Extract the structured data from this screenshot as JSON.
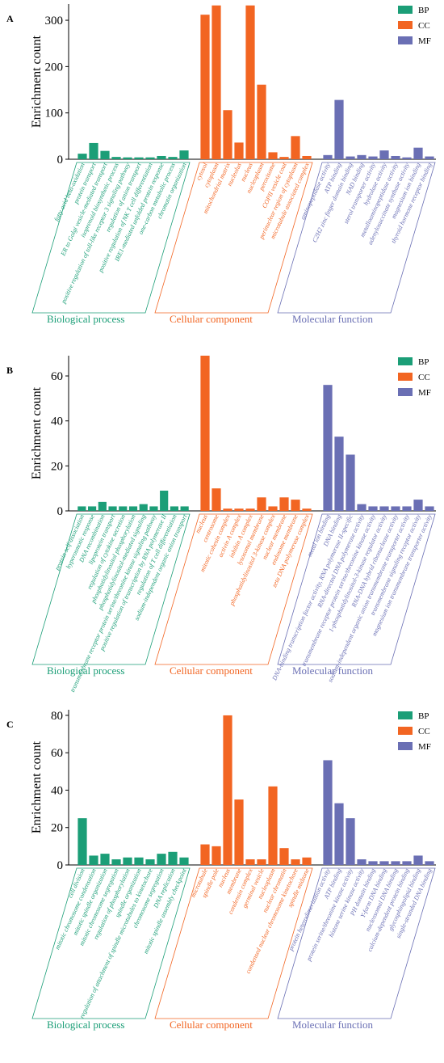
{
  "chart_data": [
    {
      "type": "bar",
      "panel": "A",
      "ylabel": "Enrichment count",
      "ylim": [
        0,
        335
      ],
      "yticks": [
        0,
        100,
        200,
        300
      ],
      "series": [
        {
          "name": "BP",
          "label": "Biological process",
          "color": "#1b9e77",
          "categories": [
            "fatty acid beta-oxidation",
            "protein transport",
            "ER to Golgi vesicle-mediated transport",
            "isoprenoid biosynthetic process",
            "positive regulation of toll-like receptor 3 signaling pathway",
            "regulation of anion transport",
            "positive regulation of NK T cell differentiation",
            "IRE1-mediated unfolded protein response",
            "one-carbon metabolic process",
            "chromatin organization"
          ],
          "values": [
            12,
            35,
            18,
            5,
            4,
            4,
            4,
            7,
            5,
            19
          ]
        },
        {
          "name": "CC",
          "label": "Cellular component",
          "color": "#f26522",
          "categories": [
            "cytosol",
            "cytoplasm",
            "mitochondrial matrix",
            "nucleolus",
            "nucleus",
            "nucleoplasm",
            "peroxisome",
            "COPII vesicle coat",
            "perinuclear region of cytoplasm",
            "microtubule associated complex"
          ],
          "values": [
            312,
            332,
            106,
            36,
            332,
            161,
            15,
            5,
            50,
            7
          ]
        },
        {
          "name": "MF",
          "label": "Molecular function",
          "color": "#6a6fb4",
          "categories": [
            "aminopeptidase activity",
            "ATP binding",
            "C2H2 zinc finger domain binding",
            "NAD binding",
            "sterol transporter activity",
            "hydrolase activity",
            "metalloaminopeptidase activity",
            "adenylosuccinate synthase activity",
            "magnesium ion binding",
            "thyroid hormone receptor binding"
          ],
          "values": [
            9,
            128,
            6,
            9,
            6,
            19,
            7,
            4,
            25,
            6
          ]
        }
      ]
    },
    {
      "type": "bar",
      "panel": "B",
      "ylabel": "Enrichment count",
      "ylim": [
        0,
        69
      ],
      "yticks": [
        0,
        20,
        40,
        60
      ],
      "series": [
        {
          "name": "BP",
          "label": "Biological process",
          "color": "#1b9e77",
          "categories": [
            "protein self-association",
            "hyperosmotic response",
            "DNA recombination",
            "lipoprotein transport",
            "regulation of cytokine secretion",
            "phosphatidylinositol phosphorylation",
            "phosphatidylinositol-mediated signaling",
            "transmembrane receptor protein serine/threonine kinase signaling pathway",
            "positive regulation of transcription by RNA polymerase II",
            "regulation of T cell differentiation",
            "sodium-independent organic anion transport"
          ],
          "values": [
            2,
            2,
            4,
            2,
            2,
            2,
            3,
            2,
            9,
            2,
            2
          ]
        },
        {
          "name": "CC",
          "label": "Cellular component",
          "color": "#f26522",
          "categories": [
            "nucleus",
            "centrosome",
            "mitotic cohesin complex",
            "activin A complex",
            "inhibin A complex",
            "lysosomal membrane",
            "phosphatidylinositol 3-kinase complex",
            "nuclear membrane",
            "endosome membrane",
            "zeta DNA polymerase complex"
          ],
          "values": [
            69,
            10,
            1,
            1,
            1,
            6,
            2,
            6,
            5,
            1
          ]
        },
        {
          "name": "MF",
          "label": "Molecular function",
          "color": "#6a6fb4",
          "categories": [
            "metal ion binding",
            "DNA binding",
            "DNA-binding transcription factor activity, RNA polymerase II-specific",
            "RNA-directed DNA polymerase activity",
            "transmembrane receptor protein serine/threonine kinase activity",
            "1-phosphatidylinositol-3-kinase regulator activity",
            "RNA-DNA hybrid ribonuclease activity",
            "sodium-independent organic anion transmembrane transporter activity",
            "transmembrane signaling receptor activity",
            "magnesium ion transmembrane transporter activity"
          ],
          "values": [
            56,
            33,
            25,
            3,
            2,
            2,
            2,
            2,
            5,
            2
          ]
        }
      ]
    },
    {
      "type": "bar",
      "panel": "C",
      "ylabel": "Enrichment count",
      "ylim": [
        0,
        83
      ],
      "yticks": [
        0,
        20,
        40,
        60,
        80
      ],
      "series": [
        {
          "name": "BP",
          "label": "Biological process",
          "color": "#1b9e77",
          "categories": [
            "cell division",
            "mitotic chromosome condensation",
            "mitotic spindle organization",
            "mitotic chromosome segregation",
            "regulation of phosphorylation",
            "spindle organization",
            "regulation of attachment of spindle microtubules to kinetochore",
            "chromosome segregation",
            "DNA replication",
            "mitotic spindle assembly checkpoint"
          ],
          "values": [
            25,
            5,
            6,
            3,
            4,
            4,
            3,
            6,
            7,
            4
          ]
        },
        {
          "name": "CC",
          "label": "Cellular component",
          "color": "#f26522",
          "categories": [
            "microtubule",
            "spindle pole",
            "nucleus",
            "membrane",
            "condensin complex",
            "germinal vesicle",
            "nucleoplasm",
            "nuclear chromatin",
            "condensed nuclear chromosome kinetochore",
            "spindle midzone"
          ],
          "values": [
            11,
            10,
            80,
            35,
            3,
            3,
            42,
            9,
            3,
            4
          ]
        },
        {
          "name": "MF",
          "label": "Molecular function",
          "color": "#6a6fb4",
          "categories": [
            "protein heterodimerization activity",
            "ATP binding",
            "protein serine/threonine kinase activity",
            "histone serine kinase activity",
            "PH domain binding",
            "Y-form DNA binding",
            "nucleosomal DNA binding",
            "calcium-dependent protein binding",
            "glycosphingolipid binding",
            "single-stranded DNA binding"
          ],
          "values": [
            56,
            33,
            25,
            3,
            2,
            2,
            2,
            2,
            5,
            2
          ]
        }
      ]
    }
  ]
}
